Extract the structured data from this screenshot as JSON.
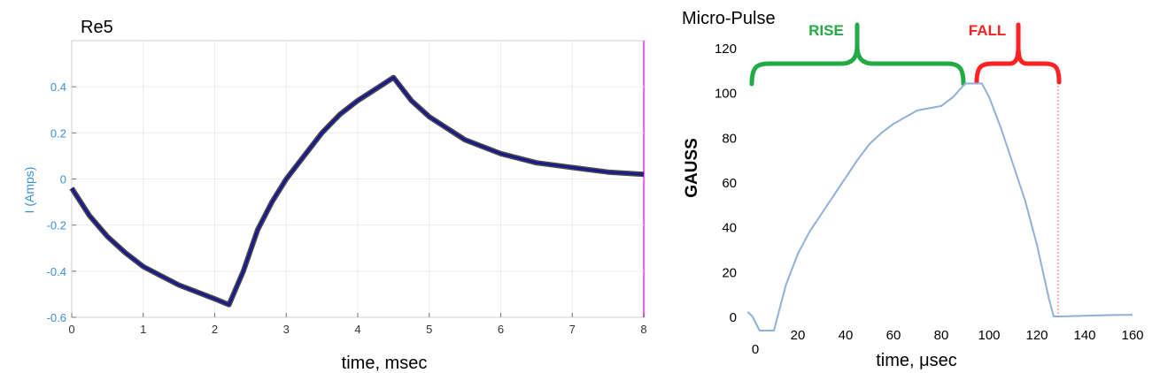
{
  "chart_data": [
    {
      "type": "line",
      "title": "Re5",
      "xlabel": "time, msec",
      "ylabel": "I (Amps)",
      "xlim": [
        0,
        8
      ],
      "ylim": [
        -0.6,
        0.6
      ],
      "x_ticks": [
        "0",
        "1",
        "2",
        "3",
        "4",
        "5",
        "6",
        "7",
        "8"
      ],
      "y_ticks": [
        "0.4",
        "0.2",
        "0",
        "-0.2",
        "-0.4",
        "-0.6"
      ],
      "grid": true,
      "colors": {
        "axis_label": "#3b8fd9",
        "trace": "#1a1a6e",
        "fit": "#cc2222",
        "edge": "#ee66ee"
      },
      "series": [
        {
          "x": [
            0,
            0.25,
            0.5,
            0.75,
            1.0,
            1.25,
            1.5,
            1.75,
            2.0,
            2.2,
            2.4,
            2.6,
            2.8,
            3.0,
            3.25,
            3.5,
            3.75,
            4.0,
            4.25,
            4.5,
            4.75,
            5.0,
            5.5,
            6.0,
            6.5,
            7.0,
            7.5,
            8.0
          ],
          "values": [
            -0.04,
            -0.16,
            -0.25,
            -0.32,
            -0.38,
            -0.42,
            -0.46,
            -0.49,
            -0.52,
            -0.545,
            -0.4,
            -0.22,
            -0.1,
            0.0,
            0.1,
            0.2,
            0.28,
            0.34,
            0.39,
            0.44,
            0.34,
            0.27,
            0.17,
            0.11,
            0.07,
            0.05,
            0.03,
            0.02
          ]
        }
      ]
    },
    {
      "type": "line",
      "title": "Micro-Pulse",
      "xlabel": "time, μsec",
      "ylabel": "GAUSS",
      "xlim": [
        0,
        160
      ],
      "ylim": [
        0,
        120
      ],
      "x_ticks": [
        "20",
        "40",
        "60",
        "80",
        "100",
        "120",
        "140",
        "160"
      ],
      "x_zero_label": "0",
      "y_ticks": [
        "120",
        "100",
        "80",
        "60",
        "40",
        "20",
        "0"
      ],
      "annotations": [
        {
          "text": "RISE",
          "color": "#22aa44"
        },
        {
          "text": "FALL",
          "color": "#ff2222"
        }
      ],
      "colors": {
        "trace": "#8fb0d8",
        "rise": "#22aa44",
        "fall": "#ff2222"
      },
      "series": [
        {
          "x": [
            -1,
            1,
            4,
            8,
            10,
            15,
            20,
            25,
            30,
            35,
            40,
            45,
            50,
            55,
            60,
            65,
            70,
            75,
            80,
            85,
            90,
            93,
            97,
            100,
            105,
            110,
            115,
            120,
            125,
            127,
            130,
            140,
            150,
            160
          ],
          "values": [
            2,
            0,
            -1,
            -1,
            -1,
            14,
            28,
            38,
            46,
            54,
            62,
            70,
            77,
            82,
            86,
            89,
            92,
            93,
            94,
            98,
            104,
            104,
            104,
            98,
            84,
            68,
            52,
            32,
            8,
            0,
            0,
            0.3,
            0.6,
            0.7
          ]
        }
      ]
    }
  ]
}
